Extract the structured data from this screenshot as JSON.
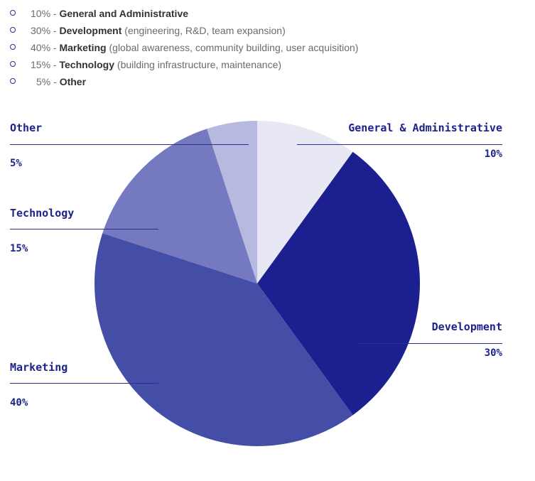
{
  "legend": [
    {
      "pct": "10%",
      "sep": " - ",
      "name": "General and Administrative",
      "detail": ""
    },
    {
      "pct": "30%",
      "sep": " - ",
      "name": "Development",
      "detail": " (engineering, R&D, team expansion)"
    },
    {
      "pct": "40%",
      "sep": " - ",
      "name": "Marketing",
      "detail": " (global awareness, community building, user acquisition)"
    },
    {
      "pct": "15%",
      "sep": " - ",
      "name": "Technology",
      "detail": " (building infrastructure, maintenance)"
    },
    {
      "pct": "5%",
      "sep": " - ",
      "name": "Other",
      "detail": ""
    }
  ],
  "chart_data": {
    "type": "pie",
    "start_angle_deg": 0,
    "direction": "clockwise",
    "slices": [
      {
        "label": "General & Administrative",
        "pct_label": "10%",
        "value": 10,
        "color": "#e8e8f5"
      },
      {
        "label": "Development",
        "pct_label": "30%",
        "value": 30,
        "color": "#1b1f8f"
      },
      {
        "label": "Marketing",
        "pct_label": "40%",
        "value": 40,
        "color": "#454ea6"
      },
      {
        "label": "Technology",
        "pct_label": "15%",
        "value": 15,
        "color": "#7479c0"
      },
      {
        "label": "Other",
        "pct_label": "5%",
        "value": 5,
        "color": "#b7b9e0"
      }
    ]
  },
  "colors": {
    "callout_text": "#1d2389",
    "callout_line": "#2a2f8f",
    "legend_text": "#6b6b6b"
  }
}
